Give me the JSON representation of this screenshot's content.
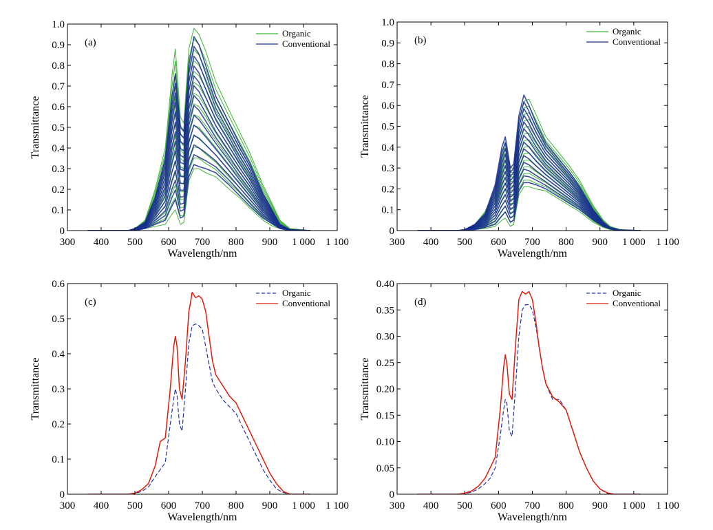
{
  "chart_data": [
    {
      "panel_label": "(a)",
      "type": "line",
      "display": "spectra-band",
      "xlabel": "Wavelength/nm",
      "ylabel": "Transmittance",
      "xlim": [
        300,
        1100
      ],
      "ylim": [
        0,
        1.0
      ],
      "xticks": [
        300,
        400,
        500,
        600,
        700,
        800,
        900,
        1000,
        1100
      ],
      "xtick_labels": [
        "300",
        "400",
        "500",
        "600",
        "700",
        "800",
        "900",
        "1 000",
        "1 100"
      ],
      "yticks": [
        0,
        0.1,
        0.2,
        0.3,
        0.4,
        0.5,
        0.6,
        0.7,
        0.8,
        0.9,
        1.0
      ],
      "ytick_labels": [
        "0",
        "0.1",
        "0.2",
        "0.3",
        "0.4",
        "0.5",
        "0.6",
        "0.7",
        "0.8",
        "0.9",
        "1.0"
      ],
      "legend_position": "top-right",
      "colors": {
        "Organic": "#3fb53a",
        "Conventional": "#1a2f8f"
      },
      "series": [
        {
          "name": "Organic",
          "style": "solid",
          "x": [
            360,
            480,
            500,
            530,
            560,
            590,
            610,
            620,
            635,
            645,
            660,
            675,
            690,
            710,
            740,
            780,
            810,
            840,
            880,
            910,
            930,
            960,
            1020
          ],
          "upper": [
            0,
            0,
            0.01,
            0.05,
            0.2,
            0.4,
            0.75,
            0.88,
            0.55,
            0.52,
            0.88,
            0.98,
            0.95,
            0.87,
            0.72,
            0.58,
            0.48,
            0.38,
            0.22,
            0.12,
            0.05,
            0.01,
            0
          ],
          "lower": [
            0,
            0,
            0,
            0.01,
            0.02,
            0.03,
            0.08,
            0.1,
            0.03,
            0.04,
            0.24,
            0.3,
            0.3,
            0.28,
            0.26,
            0.2,
            0.16,
            0.11,
            0.05,
            0.02,
            0.01,
            0,
            0
          ]
        },
        {
          "name": "Conventional",
          "style": "solid",
          "x": [
            360,
            480,
            500,
            530,
            560,
            590,
            610,
            620,
            635,
            645,
            660,
            675,
            690,
            710,
            740,
            780,
            810,
            840,
            880,
            910,
            930,
            960,
            1020
          ],
          "upper": [
            0,
            0,
            0.01,
            0.04,
            0.16,
            0.35,
            0.65,
            0.76,
            0.5,
            0.48,
            0.8,
            0.94,
            0.9,
            0.8,
            0.65,
            0.52,
            0.42,
            0.33,
            0.18,
            0.09,
            0.03,
            0.005,
            0
          ],
          "lower": [
            0,
            0,
            0,
            0.01,
            0.03,
            0.05,
            0.12,
            0.15,
            0.06,
            0.07,
            0.26,
            0.32,
            0.31,
            0.3,
            0.28,
            0.22,
            0.17,
            0.12,
            0.06,
            0.03,
            0.01,
            0,
            0
          ]
        }
      ]
    },
    {
      "panel_label": "(b)",
      "type": "line",
      "display": "spectra-band",
      "xlabel": "Wavelength/nm",
      "ylabel": "Transmittance",
      "xlim": [
        300,
        1100
      ],
      "ylim": [
        0,
        1.0
      ],
      "xticks": [
        300,
        400,
        500,
        600,
        700,
        800,
        900,
        1000,
        1100
      ],
      "xtick_labels": [
        "300",
        "400",
        "500",
        "600",
        "700",
        "800",
        "900",
        "1 000",
        "1 100"
      ],
      "yticks": [
        0,
        0.1,
        0.2,
        0.3,
        0.4,
        0.5,
        0.6,
        0.7,
        0.8,
        0.9,
        1.0
      ],
      "ytick_labels": [
        "0",
        "0.1",
        "0.2",
        "0.3",
        "0.4",
        "0.5",
        "0.6",
        "0.7",
        "0.8",
        "0.9",
        "1.0"
      ],
      "legend_position": "top-right",
      "colors": {
        "Organic": "#3fb53a",
        "Conventional": "#1a2f8f"
      },
      "series": [
        {
          "name": "Organic",
          "style": "solid",
          "x": [
            360,
            480,
            500,
            530,
            560,
            590,
            610,
            620,
            635,
            645,
            660,
            675,
            690,
            710,
            740,
            780,
            810,
            840,
            880,
            910,
            930,
            960,
            1020
          ],
          "upper": [
            0,
            0,
            0.005,
            0.03,
            0.09,
            0.2,
            0.35,
            0.42,
            0.3,
            0.3,
            0.52,
            0.62,
            0.63,
            0.56,
            0.45,
            0.37,
            0.31,
            0.24,
            0.12,
            0.05,
            0.02,
            0.005,
            0
          ],
          "lower": [
            0,
            0,
            0,
            0.005,
            0.01,
            0.02,
            0.05,
            0.06,
            0.02,
            0.03,
            0.17,
            0.21,
            0.21,
            0.2,
            0.19,
            0.15,
            0.12,
            0.09,
            0.04,
            0.015,
            0.005,
            0,
            0
          ]
        },
        {
          "name": "Conventional",
          "style": "solid",
          "x": [
            360,
            480,
            500,
            530,
            560,
            590,
            610,
            620,
            635,
            645,
            660,
            675,
            690,
            710,
            740,
            780,
            810,
            840,
            880,
            910,
            930,
            960,
            1020
          ],
          "upper": [
            0,
            0,
            0.005,
            0.03,
            0.08,
            0.22,
            0.4,
            0.45,
            0.3,
            0.32,
            0.55,
            0.65,
            0.6,
            0.52,
            0.42,
            0.34,
            0.28,
            0.21,
            0.1,
            0.04,
            0.015,
            0.003,
            0
          ],
          "lower": [
            0,
            0,
            0,
            0.005,
            0.015,
            0.03,
            0.07,
            0.09,
            0.04,
            0.05,
            0.19,
            0.23,
            0.23,
            0.22,
            0.2,
            0.16,
            0.13,
            0.1,
            0.05,
            0.02,
            0.008,
            0,
            0
          ]
        }
      ]
    },
    {
      "panel_label": "(c)",
      "type": "line",
      "xlabel": "Wavelength/nm",
      "ylabel": "Transmittance",
      "xlim": [
        300,
        1100
      ],
      "ylim": [
        0,
        0.6
      ],
      "xticks": [
        300,
        400,
        500,
        600,
        700,
        800,
        900,
        1000,
        1100
      ],
      "xtick_labels": [
        "300",
        "400",
        "500",
        "600",
        "700",
        "800",
        "900",
        "1 000",
        "1 100"
      ],
      "yticks": [
        0,
        0.1,
        0.2,
        0.3,
        0.4,
        0.5,
        0.6
      ],
      "ytick_labels": [
        "0",
        "0.1",
        "0.2",
        "0.3",
        "0.4",
        "0.5",
        "0.6"
      ],
      "legend_position": "top-right",
      "colors": {
        "Organic": "#2233aa",
        "Conventional": "#e01b0b"
      },
      "series": [
        {
          "name": "Organic",
          "style": "dashed",
          "x": [
            360,
            480,
            500,
            520,
            540,
            560,
            575,
            590,
            605,
            615,
            620,
            625,
            632,
            640,
            650,
            660,
            670,
            680,
            690,
            700,
            710,
            720,
            730,
            740,
            760,
            780,
            800,
            820,
            840,
            860,
            880,
            900,
            920,
            940,
            960,
            1000,
            1020
          ],
          "y": [
            0,
            0,
            0.002,
            0.008,
            0.02,
            0.05,
            0.07,
            0.09,
            0.2,
            0.27,
            0.3,
            0.28,
            0.2,
            0.18,
            0.3,
            0.43,
            0.48,
            0.485,
            0.48,
            0.47,
            0.42,
            0.37,
            0.32,
            0.3,
            0.27,
            0.25,
            0.23,
            0.19,
            0.15,
            0.11,
            0.07,
            0.04,
            0.015,
            0.005,
            0,
            0,
            0
          ]
        },
        {
          "name": "Conventional",
          "style": "solid",
          "x": [
            360,
            480,
            500,
            520,
            540,
            560,
            575,
            590,
            605,
            615,
            620,
            625,
            632,
            640,
            650,
            660,
            670,
            680,
            690,
            700,
            710,
            720,
            730,
            740,
            760,
            780,
            800,
            820,
            840,
            860,
            880,
            900,
            920,
            940,
            960,
            1000,
            1020
          ],
          "y": [
            0,
            0,
            0.003,
            0.013,
            0.03,
            0.08,
            0.15,
            0.16,
            0.3,
            0.42,
            0.45,
            0.42,
            0.3,
            0.27,
            0.38,
            0.52,
            0.575,
            0.56,
            0.565,
            0.555,
            0.52,
            0.45,
            0.38,
            0.34,
            0.31,
            0.28,
            0.26,
            0.22,
            0.18,
            0.14,
            0.1,
            0.06,
            0.03,
            0.008,
            0,
            0,
            0
          ]
        }
      ]
    },
    {
      "panel_label": "(d)",
      "type": "line",
      "xlabel": "Wavelength/nm",
      "ylabel": "Transmittance",
      "xlim": [
        300,
        1100
      ],
      "ylim": [
        0,
        0.4
      ],
      "xticks": [
        300,
        400,
        500,
        600,
        700,
        800,
        900,
        1000,
        1100
      ],
      "xtick_labels": [
        "300",
        "400",
        "500",
        "600",
        "700",
        "800",
        "900",
        "1 000",
        "1 100"
      ],
      "yticks": [
        0,
        0.05,
        0.1,
        0.15,
        0.2,
        0.25,
        0.3,
        0.35,
        0.4
      ],
      "ytick_labels": [
        "0",
        "0.05",
        "0.10",
        "0.15",
        "0.20",
        "0.25",
        "0.30",
        "0.35",
        "0.40"
      ],
      "legend_position": "top-right",
      "colors": {
        "Organic": "#2233aa",
        "Conventional": "#e01b0b"
      },
      "series": [
        {
          "name": "Organic",
          "style": "dashed",
          "x": [
            360,
            480,
            500,
            520,
            540,
            560,
            575,
            590,
            605,
            615,
            620,
            625,
            632,
            640,
            650,
            660,
            670,
            680,
            690,
            700,
            710,
            720,
            730,
            740,
            760,
            780,
            800,
            820,
            840,
            860,
            880,
            900,
            920,
            940,
            960,
            1000,
            1020
          ],
          "y": [
            0,
            0,
            0.001,
            0.004,
            0.01,
            0.02,
            0.03,
            0.05,
            0.11,
            0.16,
            0.18,
            0.17,
            0.12,
            0.11,
            0.2,
            0.3,
            0.35,
            0.36,
            0.36,
            0.35,
            0.32,
            0.28,
            0.24,
            0.21,
            0.18,
            0.18,
            0.16,
            0.12,
            0.08,
            0.05,
            0.025,
            0.01,
            0.002,
            0,
            0,
            0,
            0
          ]
        },
        {
          "name": "Conventional",
          "style": "solid",
          "x": [
            360,
            480,
            500,
            520,
            540,
            560,
            575,
            590,
            605,
            615,
            620,
            625,
            632,
            640,
            650,
            660,
            670,
            680,
            690,
            700,
            710,
            720,
            730,
            740,
            760,
            780,
            800,
            820,
            840,
            860,
            880,
            900,
            920,
            940,
            960,
            1000,
            1020
          ],
          "y": [
            0,
            0,
            0.002,
            0.006,
            0.015,
            0.03,
            0.05,
            0.07,
            0.16,
            0.24,
            0.265,
            0.245,
            0.19,
            0.18,
            0.28,
            0.37,
            0.385,
            0.38,
            0.385,
            0.37,
            0.33,
            0.28,
            0.24,
            0.21,
            0.185,
            0.175,
            0.16,
            0.12,
            0.08,
            0.05,
            0.025,
            0.01,
            0.003,
            0,
            0,
            0,
            0
          ]
        }
      ]
    }
  ]
}
